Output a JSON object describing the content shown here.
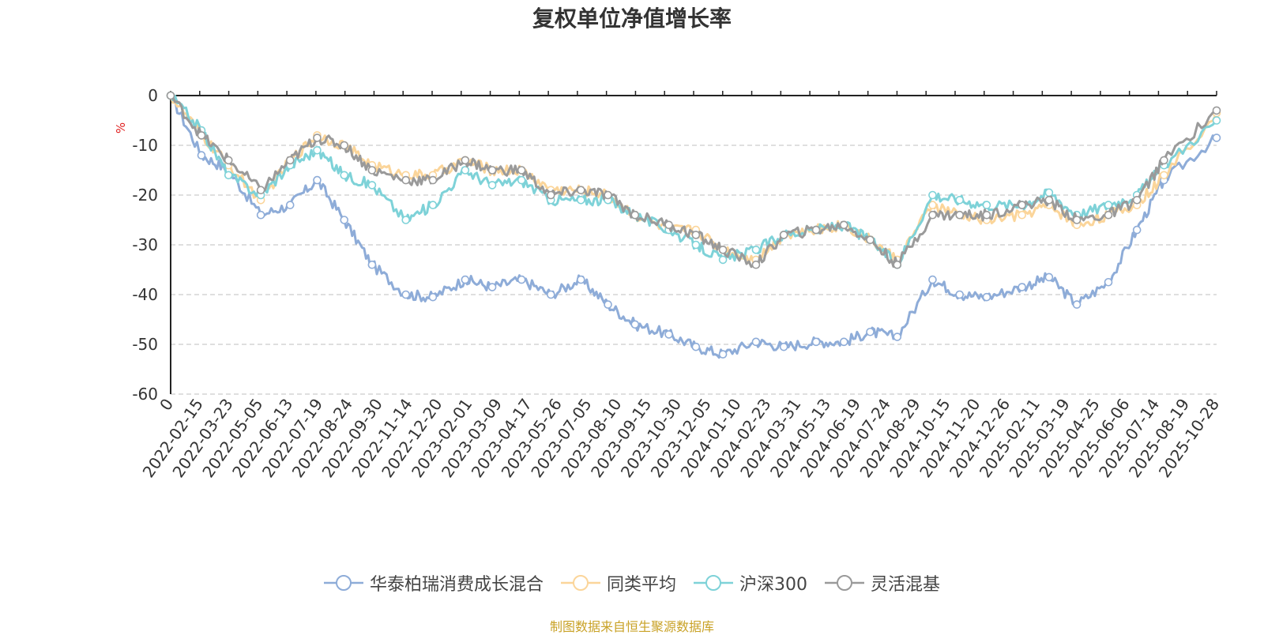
{
  "chart_data": {
    "type": "line",
    "title": "复权单位净值增长率",
    "ylabel": "%",
    "ylim": [
      -60,
      0
    ],
    "yticks": [
      0,
      -10,
      -20,
      -30,
      -40,
      -50,
      -60
    ],
    "grid": true,
    "legend_position": "bottom",
    "xlim": [
      "2022-01-05",
      "2025-10-28"
    ],
    "x_tick_labels": [
      "0",
      "2022-02-15",
      "2022-03-23",
      "2022-05-05",
      "2022-06-13",
      "2022-07-19",
      "2022-08-24",
      "2022-09-30",
      "2022-11-14",
      "2022-12-20",
      "2023-02-01",
      "2023-03-09",
      "2023-04-17",
      "2023-05-26",
      "2023-07-05",
      "2023-08-10",
      "2023-09-15",
      "2023-10-30",
      "2023-12-05",
      "2024-01-10",
      "2024-02-23",
      "2024-03-31",
      "2024-05-13",
      "2024-06-19",
      "2024-07-24",
      "2024-08-29",
      "2024-10-15",
      "2024-11-20",
      "2024-12-26",
      "2025-02-11",
      "2025-03-19",
      "2025-04-25",
      "2025-06-06",
      "2025-07-14",
      "2025-08-19",
      "2025-10-28"
    ],
    "x": [
      "2022-01-05",
      "2022-02-15",
      "2022-03-23",
      "2022-05-05",
      "2022-06-13",
      "2022-07-19",
      "2022-08-24",
      "2022-09-30",
      "2022-11-14",
      "2022-12-20",
      "2023-02-01",
      "2023-03-09",
      "2023-04-17",
      "2023-05-26",
      "2023-07-05",
      "2023-08-10",
      "2023-09-15",
      "2023-10-30",
      "2023-12-05",
      "2024-01-10",
      "2024-02-23",
      "2024-03-31",
      "2024-05-13",
      "2024-06-19",
      "2024-07-24",
      "2024-08-29",
      "2024-10-15",
      "2024-11-20",
      "2024-12-26",
      "2025-02-11",
      "2025-03-19",
      "2025-04-25",
      "2025-06-06",
      "2025-07-14",
      "2025-08-19",
      "2025-10-28"
    ],
    "series": [
      {
        "name": "华泰柏瑞消费成长混合",
        "color": "#8eacd8",
        "values": [
          0,
          -12,
          -15,
          -24,
          -22,
          -17,
          -25,
          -34,
          -40,
          -40.5,
          -37,
          -38.5,
          -37,
          -40,
          -37,
          -42,
          -46,
          -48,
          -50.5,
          -52,
          -49.5,
          -50.5,
          -49.5,
          -49.5,
          -47.5,
          -48.5,
          -37,
          -40,
          -40.5,
          -38.5,
          -36.5,
          -42,
          -37.5,
          -27,
          -17,
          -8.5
        ]
      },
      {
        "name": "同类平均",
        "color": "#fbd59a",
        "values": [
          0,
          -8,
          -14,
          -21,
          -13,
          -8,
          -10,
          -14,
          -16,
          -16,
          -13,
          -15,
          -15,
          -19,
          -19,
          -20,
          -24,
          -27,
          -27,
          -31,
          -33,
          -28,
          -27,
          -26,
          -29,
          -33,
          -22,
          -24,
          -25,
          -24,
          -22,
          -26,
          -24,
          -22,
          -16,
          -3.5
        ]
      },
      {
        "name": "沪深300",
        "color": "#7ed2d8",
        "values": [
          0,
          -7,
          -16,
          -20,
          -14,
          -11,
          -16,
          -18,
          -25,
          -22,
          -15,
          -18,
          -17,
          -21,
          -21,
          -21,
          -24,
          -27,
          -30,
          -33,
          -31,
          -28,
          -27,
          -26,
          -29,
          -34,
          -20,
          -21,
          -22,
          -22,
          -19.5,
          -24,
          -22,
          -20,
          -14,
          -5
        ]
      },
      {
        "name": "灵活混基",
        "color": "#9a9a9a",
        "values": [
          0,
          -8,
          -13,
          -19,
          -13,
          -8.5,
          -10,
          -15,
          -17,
          -17,
          -13,
          -15,
          -15,
          -20,
          -19,
          -20,
          -24,
          -26,
          -28,
          -31,
          -34,
          -28,
          -27,
          -26,
          -29,
          -34,
          -24,
          -24,
          -24,
          -22,
          -21,
          -25,
          -24,
          -21,
          -13,
          -3
        ]
      }
    ]
  },
  "source_note": "制图数据来自恒生聚源数据库"
}
